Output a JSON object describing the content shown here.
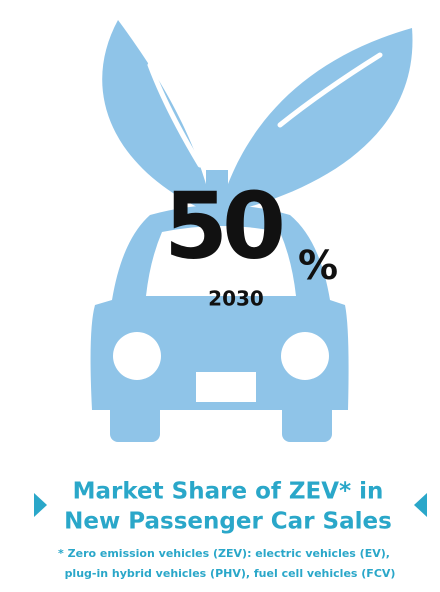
{
  "figure": {
    "value": "50",
    "unit": "%",
    "year": "2030"
  },
  "title": [
    "Market Share of ZEV* in",
    "New Passenger Car Sales"
  ],
  "footnote": [
    "* Zero emission vehicles (ZEV): electric vehicles (EV),",
    "plug-in hybrid vehicles (PHV), fuel cell vehicles (FCV)"
  ]
}
